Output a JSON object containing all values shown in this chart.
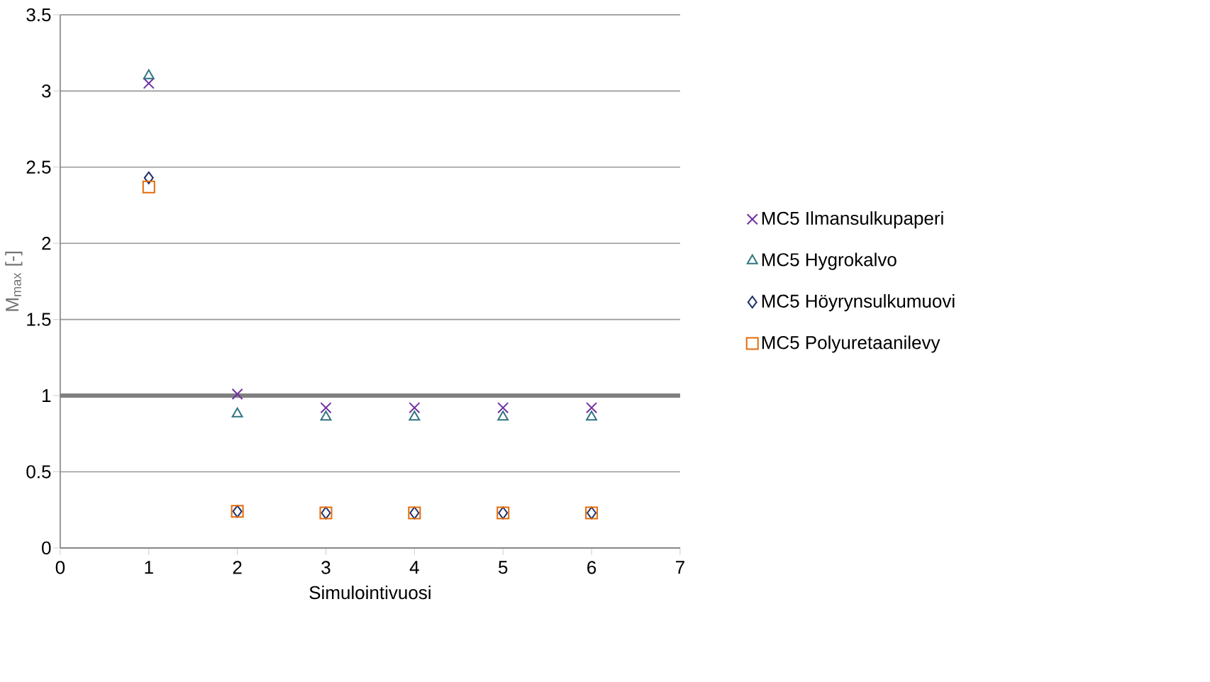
{
  "chart_data": {
    "type": "scatter",
    "xlabel": "Simulointivuosi",
    "ylabel": "M$_{max}$ [-]",
    "x": [
      1,
      2,
      3,
      4,
      5,
      6
    ],
    "series": [
      {
        "name": "MC5 Ilmansulkupaperi",
        "color": "#7030a0",
        "marker": "cross",
        "values": [
          3.05,
          1.01,
          0.92,
          0.92,
          0.92,
          0.92
        ]
      },
      {
        "name": "MC5 Hygrokalvo",
        "color": "#31747f",
        "marker": "triangle",
        "values": [
          3.1,
          0.88,
          0.86,
          0.86,
          0.86,
          0.86
        ]
      },
      {
        "name": "MC5 Höyrynsulkumuovi",
        "color": "#1f2f6b",
        "marker": "diamond",
        "values": [
          2.43,
          0.24,
          0.23,
          0.23,
          0.23,
          0.23
        ]
      },
      {
        "name": "MC5 Polyuretaanilevy",
        "color": "#e46c0a",
        "marker": "square",
        "values": [
          2.37,
          0.24,
          0.23,
          0.23,
          0.23,
          0.23
        ]
      }
    ],
    "xlim": [
      0,
      7
    ],
    "xticks": [
      0,
      1,
      2,
      3,
      4,
      5,
      6,
      7
    ],
    "ylim": [
      0,
      3.5
    ],
    "yticks": [
      0,
      0.5,
      1,
      1.5,
      2,
      2.5,
      3,
      3.5
    ],
    "ref_lines": [
      {
        "axis": "y",
        "value": 1,
        "color": "#808080"
      }
    ],
    "grid": "y",
    "legend": "right"
  }
}
